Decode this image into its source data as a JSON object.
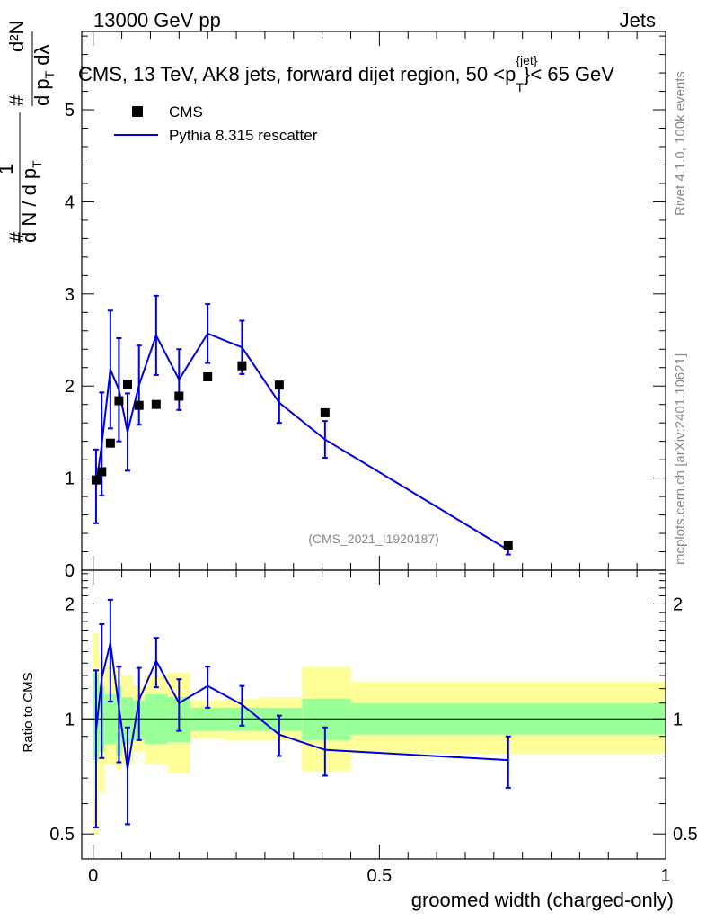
{
  "header": {
    "energy_label": "13000 GeV pp",
    "category_label": "Jets",
    "title": "CMS, 13 TeV, AK8 jets, forward dijet region, 50 <p",
    "title_sup": "{jet}",
    "title_sub": "T",
    "title_end": "}< 65 GeV",
    "analysis_id": "(CMS_2021_I1920187)"
  },
  "side_labels": {
    "rivet": "Rivet 4.1.0,  100k events",
    "mcplots": "mcplots.cern.ch [arXiv:2401.10621]"
  },
  "axes": {
    "ylabel_main": "1/N dN/dpT d²N/dpT dλ",
    "ylabel_ratio": "Ratio to CMS",
    "xlabel": "groomed width (charged-only)",
    "main_ylim": [
      0,
      5.85
    ],
    "main_yticks": [
      "0",
      "1",
      "2",
      "3",
      "4",
      "5"
    ],
    "ratio_ylim": [
      0.43,
      2.45
    ],
    "ratio_yticks": [
      "0.5",
      "1",
      "2"
    ],
    "xlim": [
      -0.02,
      1.0
    ],
    "xticks": [
      "0",
      "0.5",
      "1"
    ]
  },
  "legend": {
    "data_label": "CMS",
    "mc_label": "Pythia 8.315 rescatter"
  },
  "colors": {
    "mc_line": "#0000dd",
    "data_marker": "#000000",
    "band_outer": "#ffff99",
    "band_inner": "#99ff99"
  },
  "chart_data": {
    "type": "scatter",
    "series": [
      {
        "name": "CMS",
        "x": [
          0.005,
          0.015,
          0.03,
          0.045,
          0.06,
          0.08,
          0.11,
          0.15,
          0.2,
          0.26,
          0.325,
          0.405,
          0.725
        ],
        "y": [
          0.98,
          1.07,
          1.38,
          1.84,
          2.02,
          1.79,
          1.8,
          1.89,
          2.1,
          2.22,
          2.01,
          1.71,
          0.27
        ]
      },
      {
        "name": "Pythia 8.315 rescatter",
        "x": [
          0.005,
          0.015,
          0.03,
          0.045,
          0.06,
          0.08,
          0.11,
          0.15,
          0.2,
          0.26,
          0.325,
          0.405,
          0.725
        ],
        "y": [
          0.91,
          1.37,
          2.18,
          1.96,
          1.5,
          2.01,
          2.55,
          2.07,
          2.57,
          2.42,
          1.82,
          1.42,
          0.22
        ],
        "err": [
          0.4,
          0.56,
          0.64,
          0.56,
          0.42,
          0.43,
          0.43,
          0.33,
          0.32,
          0.29,
          0.22,
          0.2,
          0.05
        ]
      }
    ],
    "ratio": {
      "x": [
        0.005,
        0.015,
        0.03,
        0.045,
        0.06,
        0.08,
        0.11,
        0.15,
        0.2,
        0.26,
        0.325,
        0.405,
        0.725
      ],
      "y": [
        0.93,
        1.28,
        1.58,
        1.07,
        0.74,
        1.12,
        1.42,
        1.1,
        1.22,
        1.09,
        0.91,
        0.83,
        0.78
      ],
      "err": [
        0.41,
        0.49,
        0.47,
        0.3,
        0.21,
        0.24,
        0.21,
        0.17,
        0.15,
        0.13,
        0.11,
        0.12,
        0.12
      ],
      "bins": [
        {
          "lo": 0.0,
          "hi": 0.01,
          "inner": [
            0.78,
            1.32
          ],
          "outer": [
            0.5,
            1.68
          ]
        },
        {
          "lo": 0.01,
          "hi": 0.02,
          "inner": [
            0.82,
            1.22
          ],
          "outer": [
            0.64,
            1.46
          ]
        },
        {
          "lo": 0.02,
          "hi": 0.04,
          "inner": [
            0.86,
            1.16
          ],
          "outer": [
            0.76,
            1.38
          ]
        },
        {
          "lo": 0.04,
          "hi": 0.05,
          "inner": [
            0.8,
            1.22
          ],
          "outer": [
            0.74,
            1.34
          ]
        },
        {
          "lo": 0.05,
          "hi": 0.07,
          "inner": [
            0.86,
            1.14
          ],
          "outer": [
            0.76,
            1.3
          ]
        },
        {
          "lo": 0.07,
          "hi": 0.09,
          "inner": [
            0.88,
            1.12
          ],
          "outer": [
            0.82,
            1.22
          ]
        },
        {
          "lo": 0.09,
          "hi": 0.13,
          "inner": [
            0.86,
            1.16
          ],
          "outer": [
            0.76,
            1.3
          ]
        },
        {
          "lo": 0.13,
          "hi": 0.17,
          "inner": [
            0.87,
            1.14
          ],
          "outer": [
            0.72,
            1.32
          ]
        },
        {
          "lo": 0.17,
          "hi": 0.23,
          "inner": [
            0.93,
            1.07
          ],
          "outer": [
            0.89,
            1.12
          ]
        },
        {
          "lo": 0.23,
          "hi": 0.29,
          "inner": [
            0.93,
            1.07
          ],
          "outer": [
            0.88,
            1.13
          ]
        },
        {
          "lo": 0.29,
          "hi": 0.365,
          "inner": [
            0.93,
            1.07
          ],
          "outer": [
            0.88,
            1.14
          ]
        },
        {
          "lo": 0.365,
          "hi": 0.45,
          "inner": [
            0.88,
            1.13
          ],
          "outer": [
            0.73,
            1.37
          ]
        },
        {
          "lo": 0.45,
          "hi": 1.0,
          "inner": [
            0.91,
            1.1
          ],
          "outer": [
            0.81,
            1.25
          ]
        }
      ]
    }
  }
}
